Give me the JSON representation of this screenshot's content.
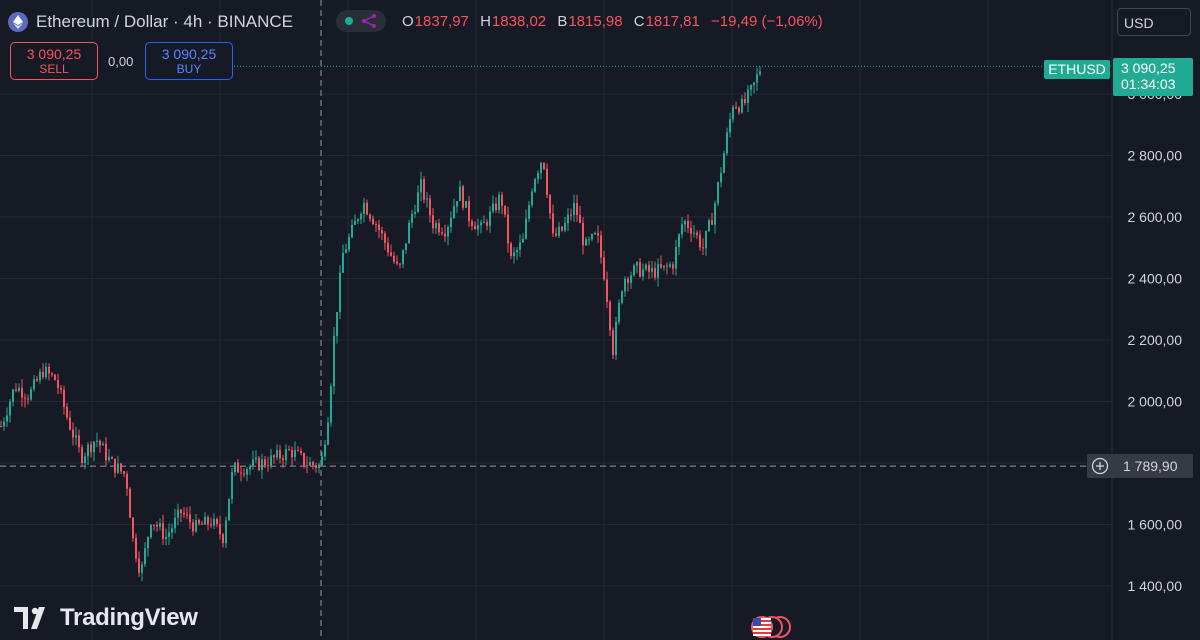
{
  "header": {
    "title": "Ethereum / Dollar · 4h · BINANCE",
    "icon": "ethereum-icon",
    "ohlc": [
      {
        "label": "O",
        "value": "1837,97"
      },
      {
        "label": "H",
        "value": "1838,02"
      },
      {
        "label": "B",
        "value": "1815,98"
      },
      {
        "label": "C",
        "value": "1817,81"
      }
    ],
    "change": "−19,49 (−1,06%)"
  },
  "trade": {
    "sell_price": "3 090,25",
    "sell_label": "SELL",
    "spread": "0,00",
    "buy_price": "3 090,25",
    "buy_label": "BUY"
  },
  "currency": "USD",
  "last_price": {
    "symbol": "ETHUSD",
    "price": "3 090,25",
    "countdown": "01:34:03"
  },
  "crosshair": {
    "price": "1 789,90",
    "icon": "add-circle-icon"
  },
  "logo": {
    "text": "TradingView",
    "icon": "tradingview-logo-icon"
  },
  "colors": {
    "background": "#161a25",
    "up": "#22ab94",
    "down": "#f7525f",
    "grid": "#242833",
    "text": "#d1d4dc",
    "buy": "#2962ff"
  },
  "chart_data": {
    "type": "candlestick",
    "title": "Ethereum / Dollar · 4h · BINANCE",
    "y_axis": {
      "ticks": [
        1400,
        1600,
        2000,
        2200,
        2400,
        2600,
        2800,
        3000
      ],
      "tick_labels": [
        "1 400,00",
        "1 600,00",
        "2 000,00",
        "2 200,00",
        "2 400,00",
        "2 600,00",
        "2 800,00",
        "3 000,00"
      ],
      "range": [
        1290,
        3175
      ],
      "position": "right"
    },
    "grid": true,
    "last_price": 3090.25,
    "crosshair_price": 1789.9,
    "price_path": [
      [
        0,
        1920
      ],
      [
        14,
        2050
      ],
      [
        28,
        2020
      ],
      [
        42,
        2100
      ],
      [
        55,
        2070
      ],
      [
        66,
        1950
      ],
      [
        80,
        1820
      ],
      [
        95,
        1880
      ],
      [
        110,
        1800
      ],
      [
        125,
        1760
      ],
      [
        132,
        1550
      ],
      [
        140,
        1440
      ],
      [
        150,
        1620
      ],
      [
        165,
        1560
      ],
      [
        180,
        1640
      ],
      [
        195,
        1590
      ],
      [
        210,
        1610
      ],
      [
        222,
        1560
      ],
      [
        232,
        1780
      ],
      [
        250,
        1790
      ],
      [
        270,
        1810
      ],
      [
        290,
        1840
      ],
      [
        305,
        1800
      ],
      [
        320,
        1790
      ],
      [
        328,
        1980
      ],
      [
        334,
        2250
      ],
      [
        342,
        2480
      ],
      [
        352,
        2560
      ],
      [
        362,
        2650
      ],
      [
        375,
        2580
      ],
      [
        388,
        2490
      ],
      [
        398,
        2420
      ],
      [
        410,
        2600
      ],
      [
        420,
        2700
      ],
      [
        432,
        2580
      ],
      [
        445,
        2560
      ],
      [
        458,
        2690
      ],
      [
        468,
        2600
      ],
      [
        480,
        2560
      ],
      [
        492,
        2620
      ],
      [
        500,
        2670
      ],
      [
        510,
        2460
      ],
      [
        522,
        2520
      ],
      [
        532,
        2720
      ],
      [
        542,
        2800
      ],
      [
        552,
        2530
      ],
      [
        562,
        2560
      ],
      [
        574,
        2640
      ],
      [
        584,
        2500
      ],
      [
        596,
        2540
      ],
      [
        604,
        2400
      ],
      [
        612,
        2170
      ],
      [
        622,
        2400
      ],
      [
        636,
        2430
      ],
      [
        650,
        2420
      ],
      [
        664,
        2430
      ],
      [
        672,
        2450
      ],
      [
        682,
        2590
      ],
      [
        692,
        2560
      ],
      [
        702,
        2500
      ],
      [
        712,
        2610
      ],
      [
        722,
        2790
      ],
      [
        732,
        2970
      ],
      [
        742,
        2960
      ],
      [
        752,
        3020
      ],
      [
        760,
        3090
      ]
    ]
  }
}
